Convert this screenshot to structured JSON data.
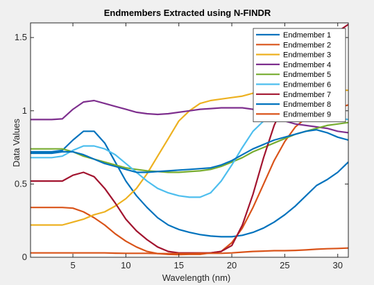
{
  "chart_data": {
    "type": "line",
    "title": "Endmembers Extracted using N-FINDR",
    "xlabel": "Wavelength (nm)",
    "ylabel": "Data Values",
    "xlim": [
      1,
      31
    ],
    "ylim": [
      0,
      1.6
    ],
    "xticks": [
      5,
      10,
      15,
      20,
      25,
      30
    ],
    "xtick_labels": [
      "5",
      "10",
      "15",
      "20",
      "25",
      "30"
    ],
    "yticks": [
      0,
      0.5,
      1,
      1.5
    ],
    "ytick_labels": [
      "0",
      "0.5",
      "1",
      "1.5"
    ],
    "grid": false,
    "legend_position": "top-right",
    "x": [
      1,
      2,
      3,
      4,
      5,
      6,
      7,
      8,
      9,
      10,
      11,
      12,
      13,
      14,
      15,
      16,
      17,
      18,
      19,
      20,
      21,
      22,
      23,
      24,
      25,
      26,
      27,
      28,
      29,
      30,
      31
    ],
    "series": [
      {
        "name": "Endmember 1",
        "color": "#0072BD",
        "values": [
          0.72,
          0.72,
          0.72,
          0.73,
          0.8,
          0.86,
          0.86,
          0.78,
          0.65,
          0.52,
          0.42,
          0.34,
          0.27,
          0.22,
          0.19,
          0.17,
          0.155,
          0.145,
          0.14,
          0.14,
          0.15,
          0.17,
          0.2,
          0.24,
          0.29,
          0.35,
          0.42,
          0.49,
          0.53,
          0.58,
          0.65
        ]
      },
      {
        "name": "Endmember 2",
        "color": "#D95319",
        "values": [
          0.34,
          0.34,
          0.34,
          0.34,
          0.335,
          0.31,
          0.27,
          0.22,
          0.16,
          0.11,
          0.07,
          0.04,
          0.025,
          0.02,
          0.018,
          0.02,
          0.02,
          0.03,
          0.04,
          0.1,
          0.2,
          0.34,
          0.5,
          0.66,
          0.79,
          0.89,
          0.95,
          0.98,
          1.0,
          1.02,
          1.04
        ]
      },
      {
        "name": "Endmember 3",
        "color": "#EDB120",
        "values": [
          0.22,
          0.22,
          0.22,
          0.22,
          0.24,
          0.26,
          0.29,
          0.31,
          0.35,
          0.4,
          0.47,
          0.57,
          0.69,
          0.81,
          0.93,
          1.0,
          1.05,
          1.07,
          1.08,
          1.09,
          1.1,
          1.12,
          1.13,
          1.13,
          1.14,
          1.14,
          1.14,
          1.14,
          1.14,
          1.14,
          1.14
        ]
      },
      {
        "name": "Endmember 4",
        "color": "#7E2F8E",
        "values": [
          0.94,
          0.94,
          0.94,
          0.945,
          1.01,
          1.06,
          1.07,
          1.05,
          1.03,
          1.01,
          0.99,
          0.98,
          0.975,
          0.98,
          0.99,
          1.0,
          1.01,
          1.015,
          1.02,
          1.02,
          1.02,
          1.01,
          0.99,
          0.96,
          0.93,
          0.91,
          0.9,
          0.89,
          0.88,
          0.86,
          0.85
        ]
      },
      {
        "name": "Endmember 5",
        "color": "#77AC30",
        "values": [
          0.74,
          0.74,
          0.74,
          0.74,
          0.72,
          0.69,
          0.67,
          0.65,
          0.63,
          0.61,
          0.6,
          0.59,
          0.585,
          0.58,
          0.58,
          0.585,
          0.59,
          0.6,
          0.62,
          0.65,
          0.68,
          0.72,
          0.75,
          0.78,
          0.81,
          0.84,
          0.86,
          0.88,
          0.9,
          0.91,
          0.92
        ]
      },
      {
        "name": "Endmember 6",
        "color": "#4DBEEE",
        "values": [
          0.68,
          0.68,
          0.68,
          0.69,
          0.73,
          0.76,
          0.76,
          0.74,
          0.7,
          0.64,
          0.58,
          0.52,
          0.47,
          0.44,
          0.42,
          0.41,
          0.41,
          0.44,
          0.52,
          0.63,
          0.75,
          0.86,
          0.93,
          0.97,
          0.97,
          0.96,
          0.96,
          0.96,
          0.96,
          0.95,
          0.94
        ]
      },
      {
        "name": "Endmember 7",
        "color": "#A2142F",
        "values": [
          0.52,
          0.52,
          0.52,
          0.52,
          0.56,
          0.58,
          0.55,
          0.47,
          0.37,
          0.26,
          0.18,
          0.12,
          0.07,
          0.04,
          0.03,
          0.03,
          0.03,
          0.03,
          0.04,
          0.08,
          0.22,
          0.43,
          0.68,
          0.9,
          1.06,
          1.19,
          1.3,
          1.4,
          1.48,
          1.54,
          1.59
        ]
      },
      {
        "name": "Endmember 8",
        "color": "#0072BD",
        "values": [
          0.71,
          0.71,
          0.71,
          0.72,
          0.72,
          0.7,
          0.67,
          0.64,
          0.62,
          0.6,
          0.58,
          0.58,
          0.585,
          0.59,
          0.595,
          0.6,
          0.605,
          0.61,
          0.63,
          0.66,
          0.7,
          0.74,
          0.77,
          0.8,
          0.82,
          0.84,
          0.86,
          0.87,
          0.85,
          0.82,
          0.8
        ]
      },
      {
        "name": "Endmember 9",
        "color": "#D95319",
        "values": [
          0.03,
          0.03,
          0.03,
          0.03,
          0.03,
          0.03,
          0.03,
          0.03,
          0.028,
          0.027,
          0.027,
          0.027,
          0.025,
          0.025,
          0.025,
          0.025,
          0.027,
          0.027,
          0.027,
          0.03,
          0.035,
          0.04,
          0.042,
          0.045,
          0.045,
          0.047,
          0.05,
          0.055,
          0.058,
          0.06,
          0.063
        ]
      }
    ]
  }
}
